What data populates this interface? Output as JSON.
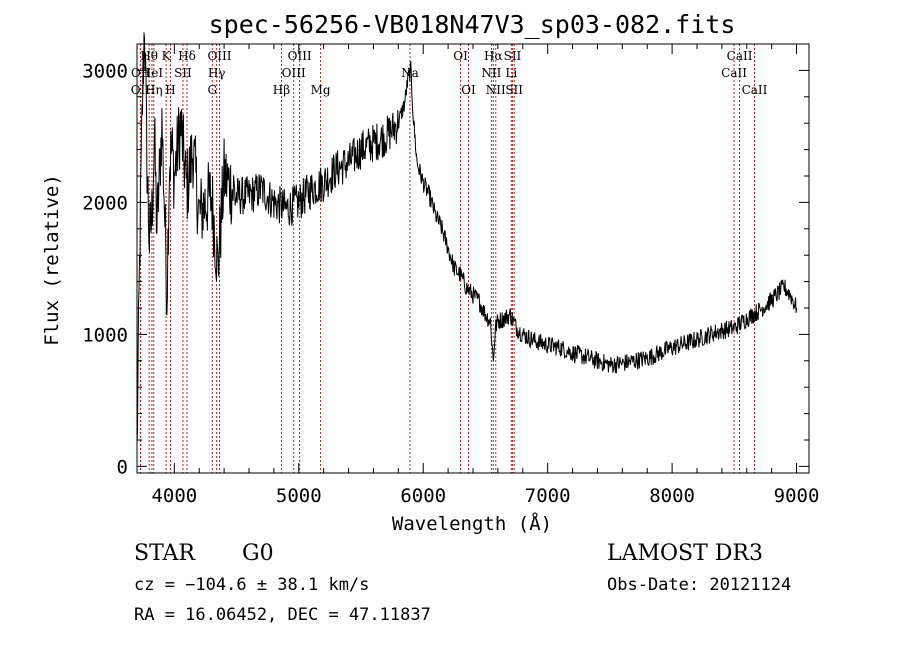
{
  "chart_data": {
    "type": "line",
    "title": "spec-56256-VB018N47V3_sp03-082.fits",
    "xlabel": "Wavelength (Å)",
    "ylabel": "Flux (relative)",
    "xlim": [
      3700,
      9100
    ],
    "ylim": [
      -50,
      3200
    ],
    "xticks": [
      4000,
      5000,
      6000,
      7000,
      8000,
      9000
    ],
    "yticks": [
      0,
      1000,
      2000,
      3000
    ],
    "series": [
      {
        "name": "flux",
        "x": [
          3700,
          3720,
          3740,
          3760,
          3780,
          3800,
          3820,
          3840,
          3860,
          3880,
          3900,
          3920,
          3940,
          3960,
          3980,
          4000,
          4050,
          4100,
          4150,
          4200,
          4250,
          4300,
          4350,
          4400,
          4500,
          4600,
          4700,
          4800,
          4900,
          5000,
          5100,
          5200,
          5300,
          5400,
          5500,
          5600,
          5700,
          5800,
          5850,
          5880,
          5900,
          5920,
          5950,
          6000,
          6050,
          6100,
          6150,
          6200,
          6250,
          6300,
          6350,
          6400,
          6450,
          6500,
          6540,
          6563,
          6580,
          6600,
          6650,
          6700,
          6750,
          6800,
          6900,
          7000,
          7100,
          7200,
          7300,
          7400,
          7500,
          7600,
          7700,
          7800,
          7900,
          8000,
          8100,
          8200,
          8300,
          8400,
          8500,
          8600,
          8700,
          8800,
          8900,
          8950,
          9000
        ],
        "y": [
          100,
          1500,
          2600,
          3400,
          2300,
          1700,
          1900,
          2500,
          1800,
          2200,
          2600,
          2000,
          1300,
          2300,
          2400,
          2200,
          2600,
          2100,
          2400,
          1900,
          2000,
          2050,
          1500,
          2200,
          2050,
          2050,
          2100,
          2000,
          1950,
          2000,
          2100,
          2150,
          2250,
          2300,
          2400,
          2450,
          2500,
          2600,
          2750,
          2950,
          3000,
          2650,
          2300,
          2150,
          2050,
          1900,
          1800,
          1650,
          1500,
          1450,
          1350,
          1300,
          1250,
          1150,
          1100,
          800,
          1050,
          1100,
          1120,
          1150,
          1050,
          1000,
          950,
          920,
          900,
          860,
          830,
          800,
          770,
          780,
          800,
          820,
          860,
          900,
          930,
          960,
          1000,
          1030,
          1050,
          1120,
          1180,
          1260,
          1360,
          1300,
          1200
        ]
      }
    ],
    "line_markers": [
      {
        "name": "OII",
        "wl": 3727,
        "row": 2
      },
      {
        "name": "OII",
        "wl": 3729,
        "row": 1
      },
      {
        "name": "Hθ",
        "wl": 3798,
        "row": 0
      },
      {
        "name": "HeI",
        "wl": 3820,
        "row": 1
      },
      {
        "name": "Hη",
        "wl": 3835,
        "row": 2
      },
      {
        "name": "K",
        "wl": 3934,
        "row": 0
      },
      {
        "name": "SII",
        "wl": 4069,
        "row": 1
      },
      {
        "name": "H",
        "wl": 3969,
        "row": 2
      },
      {
        "name": "Hδ",
        "wl": 4102,
        "row": 0
      },
      {
        "name": "OIII",
        "wl": 4363,
        "row": 0
      },
      {
        "name": "Hγ",
        "wl": 4340,
        "row": 1
      },
      {
        "name": "G",
        "wl": 4305,
        "row": 2
      },
      {
        "name": "Hβ",
        "wl": 4861,
        "row": 2
      },
      {
        "name": "OIII",
        "wl": 4959,
        "row": 1
      },
      {
        "name": "OIII",
        "wl": 5007,
        "row": 0
      },
      {
        "name": "Mg",
        "wl": 5175,
        "row": 2
      },
      {
        "name": "Na",
        "wl": 5893,
        "row": 1
      },
      {
        "name": "OI",
        "wl": 6300,
        "row": 0
      },
      {
        "name": "OI",
        "wl": 6364,
        "row": 2
      },
      {
        "name": "Hα",
        "wl": 6563,
        "row": 0
      },
      {
        "name": "NII",
        "wl": 6548,
        "row": 1
      },
      {
        "name": "NII",
        "wl": 6583,
        "row": 2
      },
      {
        "name": "SII",
        "wl": 6717,
        "row": 0
      },
      {
        "name": "Li",
        "wl": 6708,
        "row": 1
      },
      {
        "name": "SII",
        "wl": 6731,
        "row": 2
      },
      {
        "name": "CaII",
        "wl": 8498,
        "row": 1
      },
      {
        "name": "CaII",
        "wl": 8542,
        "row": 0
      },
      {
        "name": "CaII",
        "wl": 8662,
        "row": 2
      }
    ]
  },
  "info": {
    "object_class": "STAR",
    "subclass": "G0",
    "survey": "LAMOST DR3",
    "redshift": "cz = −104.6 ± 38.1 km/s",
    "obs_date": "Obs-Date: 20121124",
    "coords": "RA =  16.06452, DEC =  47.11837"
  },
  "colors": {
    "spectrum": "#000000",
    "marker": "#b22222",
    "axis": "#000000"
  }
}
